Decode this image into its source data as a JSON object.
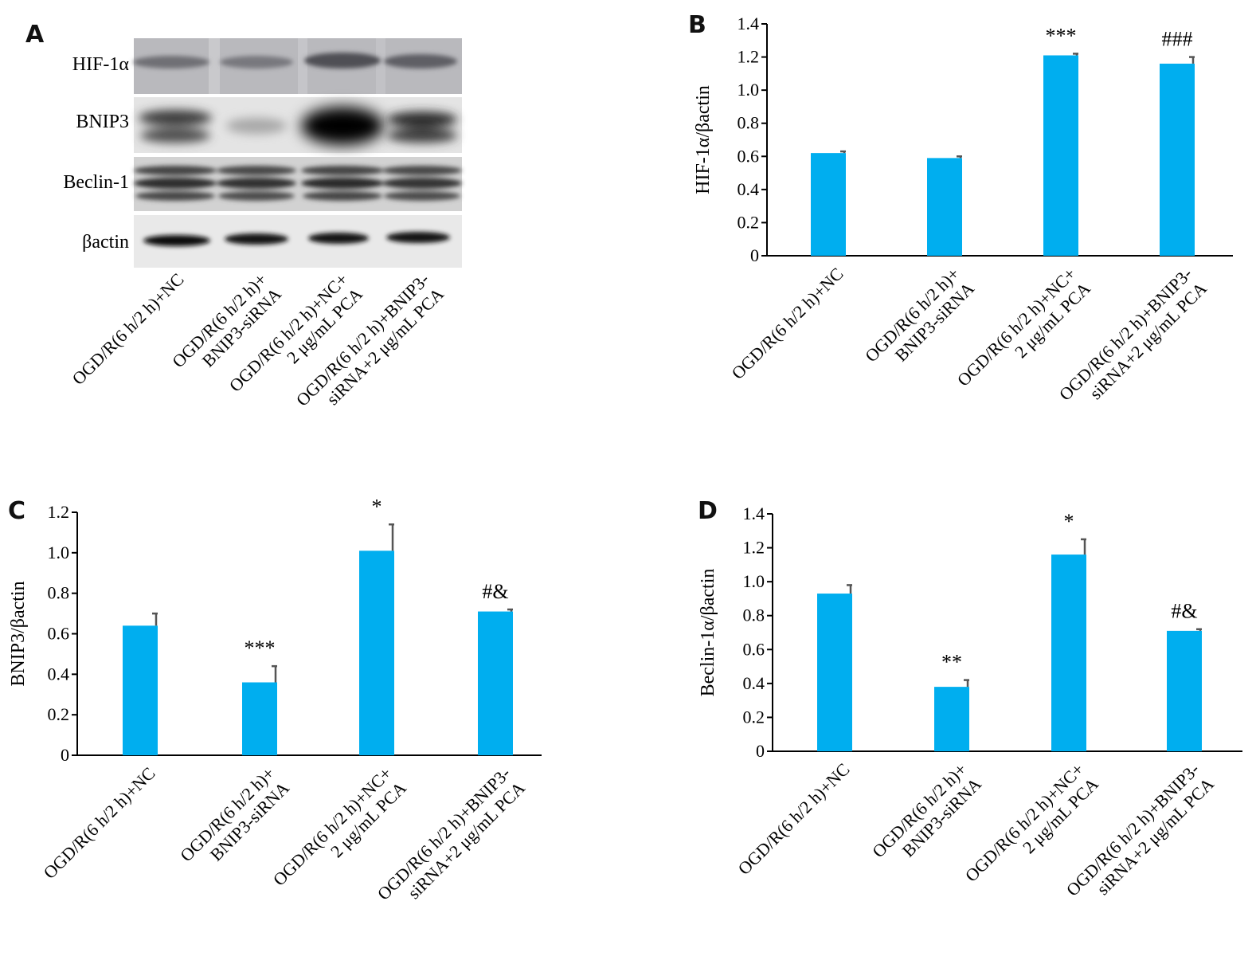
{
  "blot": {
    "panel_label": "A",
    "rows": [
      "HIF-1α",
      "BNIP3",
      "Beclin-1",
      "βactin"
    ],
    "categories": [
      [
        "OGD/R(6 h/2 h)+NC"
      ],
      [
        "OGD/R(6 h/2 h)+",
        "BNIP3-siRNA"
      ],
      [
        "OGD/R(6 h/2 h)+NC+",
        "2 μg/mL PCA"
      ],
      [
        "OGD/R(6 h/2 h)+BNIP3-",
        "siRNA+2 μg/mL PCA"
      ]
    ]
  },
  "chart_data": [
    {
      "panel_label": "B",
      "type": "bar",
      "ylabel": "HIF-1α/βactin",
      "ylim": [
        0,
        1.4
      ],
      "yticks": [
        "0",
        "0.2",
        "0.4",
        "0.6",
        "0.8",
        "1.0",
        "1.2",
        "1.4"
      ],
      "categories": [
        [
          "OGD/R(6 h/2 h)+NC"
        ],
        [
          "OGD/R(6 h/2 h)+",
          "BNIP3-siRNA"
        ],
        [
          "OGD/R(6 h/2 h)+NC+",
          "2 μg/mL PCA"
        ],
        [
          "OGD/R(6 h/2 h)+BNIP3-",
          "siRNA+2 μg/mL PCA"
        ]
      ],
      "values": [
        0.62,
        0.59,
        1.21,
        1.16
      ],
      "errors": [
        0.01,
        0.01,
        0.01,
        0.04
      ],
      "annotations": [
        "",
        "",
        "***",
        "###"
      ]
    },
    {
      "panel_label": "C",
      "type": "bar",
      "ylabel": "BNIP3/βactin",
      "ylim": [
        0,
        1.2
      ],
      "yticks": [
        "0",
        "0.2",
        "0.4",
        "0.6",
        "0.8",
        "1.0",
        "1.2"
      ],
      "categories": [
        [
          "OGD/R(6 h/2 h)+NC"
        ],
        [
          "OGD/R(6 h/2 h)+",
          "BNIP3-siRNA"
        ],
        [
          "OGD/R(6 h/2 h)+NC+",
          "2 μg/mL PCA"
        ],
        [
          "OGD/R(6 h/2 h)+BNIP3-",
          "siRNA+2 μg/mL PCA"
        ]
      ],
      "values": [
        0.64,
        0.36,
        1.01,
        0.71
      ],
      "errors": [
        0.06,
        0.08,
        0.13,
        0.01
      ],
      "annotations": [
        "",
        "***",
        "*",
        "#&"
      ]
    },
    {
      "panel_label": "D",
      "type": "bar",
      "ylabel": "Beclin-1α/βactin",
      "ylim": [
        0,
        1.4
      ],
      "yticks": [
        "0",
        "0.2",
        "0.4",
        "0.6",
        "0.8",
        "1.0",
        "1.2",
        "1.4"
      ],
      "categories": [
        [
          "OGD/R(6 h/2 h)+NC"
        ],
        [
          "OGD/R(6 h/2 h)+",
          "BNIP3-siRNA"
        ],
        [
          "OGD/R(6 h/2 h)+NC+",
          "2 μg/mL PCA"
        ],
        [
          "OGD/R(6 h/2 h)+BNIP3-",
          "siRNA+2 μg/mL PCA"
        ]
      ],
      "values": [
        0.93,
        0.38,
        1.16,
        0.71
      ],
      "errors": [
        0.05,
        0.04,
        0.09,
        0.01
      ],
      "annotations": [
        "",
        "**",
        "*",
        "#&"
      ]
    }
  ]
}
